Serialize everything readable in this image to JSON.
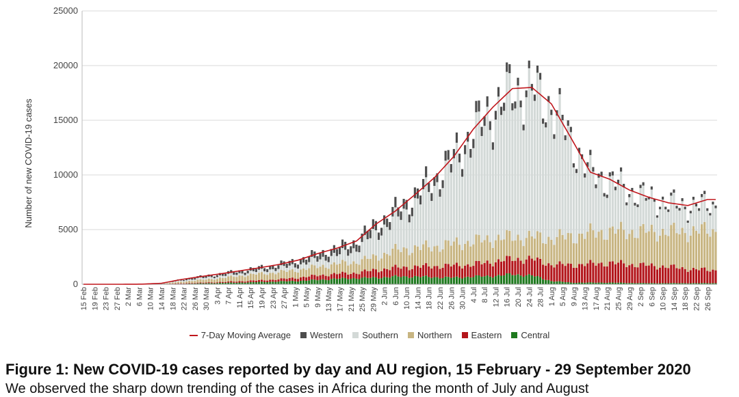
{
  "figure": {
    "caption": "Figure 1: New COVID-19 cases reported by day and AU region, 15 February - 29 September 2020",
    "body_text": "We observed the sharp down trending of the cases in Africa during the month of July and August"
  },
  "colors": {
    "Western": "#4d4d4d",
    "Southern": "#d3d9d7",
    "Northern": "#c8b582",
    "Eastern": "#b3161b",
    "Central": "#1f7a1f",
    "moving_average": "#c0161c",
    "grid": "#d9d9d9"
  },
  "chart_data": {
    "type": "bar",
    "stacked": true,
    "title": "",
    "xlabel": "",
    "ylabel": "Number of new COVID-19 cases",
    "ylim": [
      0,
      25000
    ],
    "yticks": [
      0,
      5000,
      10000,
      15000,
      20000,
      25000
    ],
    "ytick_labels": [
      "0",
      "5000",
      "10000",
      "15000",
      "20000",
      "25000"
    ],
    "grid": "horizontal",
    "legend_position": "bottom",
    "x_start": "2020-02-15",
    "x_end": "2020-09-29",
    "x_tick_labels": [
      "15 Feb",
      "19 Feb",
      "23 Feb",
      "27 Feb",
      "2 Mar",
      "6 Mar",
      "10 Mar",
      "14 Mar",
      "18 Mar",
      "22 Mar",
      "26 Mar",
      "30 Mar",
      "3 Apr",
      "7 Apr",
      "11 Apr",
      "15 Apr",
      "19 Apr",
      "23 Apr",
      "27 Apr",
      "1 May",
      "5 May",
      "9 May",
      "13 May",
      "17 May",
      "21 May",
      "25 May",
      "29 May",
      "2 Jun",
      "6 Jun",
      "10 Jun",
      "14 Jun",
      "18 Jun",
      "22 Jun",
      "26 Jun",
      "30 Jun",
      "4 Jul",
      "8 Jul",
      "12 Jul",
      "16 Jul",
      "20 Jul",
      "24 Jul",
      "28 Jul",
      "1 Aug",
      "5 Aug",
      "9 Aug",
      "13 Aug",
      "17 Aug",
      "21 Aug",
      "25 Aug",
      "29 Aug",
      "2 Sep",
      "6 Sep",
      "10 Sep",
      "14 Sep",
      "18 Sep",
      "22 Sep",
      "26 Sep"
    ],
    "legend": [
      "7-Day Moving Average",
      "Western",
      "Southern",
      "Northern",
      "Eastern",
      "Central"
    ],
    "series_order": [
      "Central",
      "Eastern",
      "Northern",
      "Southern",
      "Western"
    ],
    "weekly_approx_totals": {
      "dates": [
        "15 Feb",
        "22 Feb",
        "29 Feb",
        "7 Mar",
        "14 Mar",
        "21 Mar",
        "28 Mar",
        "4 Apr",
        "11 Apr",
        "18 Apr",
        "25 Apr",
        "2 May",
        "9 May",
        "16 May",
        "23 May",
        "30 May",
        "6 Jun",
        "13 Jun",
        "20 Jun",
        "27 Jun",
        "4 Jul",
        "11 Jul",
        "18 Jul",
        "25 Jul",
        "1 Aug",
        "8 Aug",
        "15 Aug",
        "22 Aug",
        "29 Aug",
        "5 Sep",
        "12 Sep",
        "19 Sep",
        "26 Sep"
      ],
      "Central": [
        0,
        0,
        0,
        0,
        10,
        40,
        80,
        120,
        150,
        200,
        250,
        300,
        400,
        500,
        550,
        600,
        700,
        700,
        650,
        600,
        700,
        750,
        900,
        800,
        300,
        150,
        150,
        150,
        120,
        100,
        100,
        100,
        100
      ],
      "Eastern": [
        0,
        0,
        0,
        0,
        10,
        40,
        60,
        80,
        120,
        150,
        200,
        300,
        400,
        450,
        500,
        700,
        800,
        900,
        1000,
        1100,
        1100,
        1300,
        1400,
        1500,
        1500,
        1600,
        1700,
        1800,
        1700,
        1600,
        1500,
        1300,
        1200
      ],
      "Northern": [
        0,
        0,
        0,
        5,
        30,
        150,
        250,
        350,
        500,
        600,
        650,
        700,
        800,
        900,
        1000,
        1200,
        1600,
        1700,
        1800,
        2000,
        2100,
        2100,
        2000,
        2000,
        2400,
        2600,
        2800,
        2900,
        3000,
        3100,
        3200,
        3400,
        3600
      ],
      "Southern": [
        0,
        0,
        0,
        0,
        20,
        100,
        150,
        200,
        200,
        250,
        350,
        450,
        650,
        800,
        1200,
        2200,
        2800,
        4000,
        5500,
        7200,
        9400,
        11200,
        12900,
        13100,
        11800,
        8600,
        5200,
        4400,
        3500,
        2900,
        2400,
        2200,
        2200
      ],
      "Western": [
        0,
        0,
        0,
        0,
        20,
        100,
        160,
        200,
        250,
        300,
        350,
        450,
        550,
        650,
        700,
        800,
        800,
        900,
        800,
        800,
        900,
        850,
        700,
        600,
        500,
        450,
        400,
        350,
        300,
        250,
        250,
        250,
        250
      ]
    },
    "moving_average_7day_weekly": [
      0,
      0,
      0,
      10,
      90,
      430,
      700,
      950,
      1220,
      1500,
      1800,
      2200,
      2800,
      3300,
      3950,
      5500,
      6700,
      8200,
      9750,
      11700,
      14200,
      16200,
      17900,
      18000,
      16500,
      13400,
      10250,
      9600,
      8620,
      7950,
      7450,
      7200,
      7750
    ]
  }
}
